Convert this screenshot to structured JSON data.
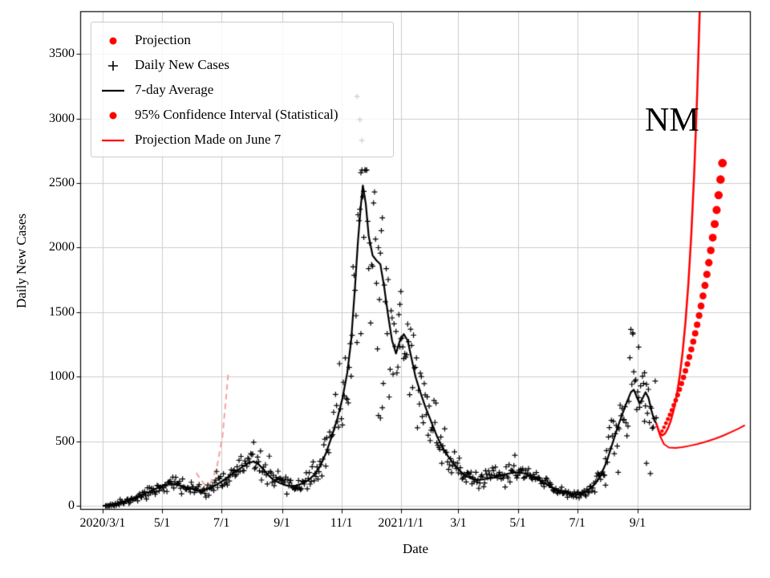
{
  "figure": {
    "annotation": "NM",
    "background": "#ffffff"
  },
  "axes": {
    "xlabel": "Date",
    "ylabel": "Daily New Cases",
    "epoch": "2020-03-01",
    "xlim_days": [
      -23,
      665
    ],
    "ylim": [
      -30,
      3830
    ],
    "grid_color": "#cdcdcd",
    "spine_color": "#000000",
    "xticks": [
      {
        "label": "2020/3/1",
        "date": "2020-03-01"
      },
      {
        "label": "5/1",
        "date": "2020-05-01"
      },
      {
        "label": "7/1",
        "date": "2020-07-01"
      },
      {
        "label": "9/1",
        "date": "2020-09-01"
      },
      {
        "label": "11/1",
        "date": "2020-11-01"
      },
      {
        "label": "2021/1/1",
        "date": "2021-01-01"
      },
      {
        "label": "3/1",
        "date": "2021-03-01"
      },
      {
        "label": "5/1",
        "date": "2021-05-01"
      },
      {
        "label": "7/1",
        "date": "2021-07-01"
      },
      {
        "label": "9/1",
        "date": "2021-09-01"
      }
    ],
    "ytick_values": [
      0,
      500,
      1000,
      1500,
      2000,
      2500,
      3000,
      3500
    ]
  },
  "legend": {
    "items": [
      {
        "label": "Projection",
        "marker": "dot",
        "color": "#ff0000"
      },
      {
        "label": "Daily New Cases",
        "marker": "plus",
        "color": "#000000"
      },
      {
        "label": "7-day Average",
        "marker": "line",
        "color": "#000000"
      },
      {
        "label": "95% Confidence Interval (Statistical)",
        "marker": "dot",
        "color": "#ff0000"
      },
      {
        "label": "Projection Made on June 7",
        "marker": "line",
        "color": "#ff0000"
      }
    ]
  },
  "chart_data": {
    "type": "line",
    "title": "",
    "xlabel": "Date",
    "ylabel": "Daily New Cases",
    "xlim": [
      "2020-02-07",
      "2021-12-26"
    ],
    "ylim": [
      0,
      3800
    ],
    "grid": true,
    "legend_position": "upper left",
    "annotation": "NM",
    "series": [
      {
        "name": "Old projection segment A (faded)",
        "kind": "line",
        "color": "#f4a2a2",
        "width": 2,
        "dash": [
          7,
          5
        ],
        "points": [
          [
            "2020-06-05",
            255
          ],
          [
            "2020-06-12",
            180
          ],
          [
            "2020-06-18",
            130
          ]
        ]
      },
      {
        "name": "Old projection segment B (faded)",
        "kind": "line",
        "color": "#f4a2a2",
        "width": 2,
        "dash": [
          7,
          5
        ],
        "points": [
          [
            "2020-06-12",
            118
          ],
          [
            "2020-06-19",
            165
          ],
          [
            "2020-06-26",
            290
          ],
          [
            "2020-07-02",
            540
          ],
          [
            "2020-07-08",
            1030
          ]
        ]
      },
      {
        "name": "Daily New Cases",
        "kind": "scatter-plus",
        "color": "#000000",
        "lw": 1.2,
        "arm": 3.4,
        "generate": {
          "from": "7-day Average",
          "start": "2020-03-04",
          "end": "2021-09-20",
          "noise_frac": 0.16,
          "min_sigma": 10,
          "seed": 11,
          "spike_every": 9,
          "spike_mult": 1.9,
          "clamp_max": 2600
        },
        "points": [
          [
            "2020-11-17",
            3170
          ],
          [
            "2020-11-20",
            2990
          ],
          [
            "2020-11-22",
            2830
          ],
          [
            "2020-11-21",
            2580
          ],
          [
            "2020-11-24",
            2080
          ],
          [
            "2020-12-09",
            700
          ],
          [
            "2020-12-11",
            680
          ],
          [
            "2020-12-13",
            760
          ],
          [
            "2020-12-31",
            1560
          ],
          [
            "2021-01-01",
            1660
          ],
          [
            "2021-08-27",
            1330
          ],
          [
            "2021-09-02",
            1230
          ],
          [
            "2021-09-08",
            1030
          ],
          [
            "2021-07-30",
            160
          ],
          [
            "2021-08-12",
            260
          ],
          [
            "2021-09-10",
            330
          ],
          [
            "2021-09-14",
            250
          ]
        ]
      },
      {
        "name": "7-day Average",
        "kind": "line",
        "color": "#000000",
        "width": 2.2,
        "points": [
          [
            "2020-03-01",
            0
          ],
          [
            "2020-03-07",
            4
          ],
          [
            "2020-03-13",
            10
          ],
          [
            "2020-03-19",
            20
          ],
          [
            "2020-03-25",
            34
          ],
          [
            "2020-03-31",
            50
          ],
          [
            "2020-04-06",
            70
          ],
          [
            "2020-04-12",
            90
          ],
          [
            "2020-04-18",
            110
          ],
          [
            "2020-04-24",
            132
          ],
          [
            "2020-04-30",
            150
          ],
          [
            "2020-05-06",
            166
          ],
          [
            "2020-05-12",
            172
          ],
          [
            "2020-05-18",
            162
          ],
          [
            "2020-05-24",
            148
          ],
          [
            "2020-05-30",
            135
          ],
          [
            "2020-06-05",
            124
          ],
          [
            "2020-06-11",
            118
          ],
          [
            "2020-06-17",
            130
          ],
          [
            "2020-06-23",
            152
          ],
          [
            "2020-06-29",
            178
          ],
          [
            "2020-07-05",
            208
          ],
          [
            "2020-07-11",
            242
          ],
          [
            "2020-07-17",
            274
          ],
          [
            "2020-07-23",
            305
          ],
          [
            "2020-07-29",
            332
          ],
          [
            "2020-08-03",
            345
          ],
          [
            "2020-08-08",
            322
          ],
          [
            "2020-08-13",
            282
          ],
          [
            "2020-08-18",
            238
          ],
          [
            "2020-08-23",
            204
          ],
          [
            "2020-08-29",
            180
          ],
          [
            "2020-09-04",
            162
          ],
          [
            "2020-09-10",
            152
          ],
          [
            "2020-09-16",
            158
          ],
          [
            "2020-09-22",
            174
          ],
          [
            "2020-09-28",
            198
          ],
          [
            "2020-10-04",
            240
          ],
          [
            "2020-10-10",
            305
          ],
          [
            "2020-10-16",
            405
          ],
          [
            "2020-10-22",
            535
          ],
          [
            "2020-10-28",
            680
          ],
          [
            "2020-11-02",
            830
          ],
          [
            "2020-11-07",
            1030
          ],
          [
            "2020-11-11",
            1280
          ],
          [
            "2020-11-15",
            1700
          ],
          [
            "2020-11-18",
            2050
          ],
          [
            "2020-11-21",
            2330
          ],
          [
            "2020-11-23",
            2480
          ],
          [
            "2020-11-26",
            2340
          ],
          [
            "2020-11-29",
            2090
          ],
          [
            "2020-12-03",
            1940
          ],
          [
            "2020-12-07",
            1900
          ],
          [
            "2020-12-11",
            1870
          ],
          [
            "2020-12-15",
            1690
          ],
          [
            "2020-12-19",
            1470
          ],
          [
            "2020-12-23",
            1280
          ],
          [
            "2020-12-27",
            1180
          ],
          [
            "2020-12-31",
            1280
          ],
          [
            "2021-01-04",
            1330
          ],
          [
            "2021-01-08",
            1280
          ],
          [
            "2021-01-12",
            1140
          ],
          [
            "2021-01-16",
            1000
          ],
          [
            "2021-01-21",
            880
          ],
          [
            "2021-01-26",
            770
          ],
          [
            "2021-02-01",
            655
          ],
          [
            "2021-02-07",
            540
          ],
          [
            "2021-02-13",
            448
          ],
          [
            "2021-02-19",
            378
          ],
          [
            "2021-02-25",
            318
          ],
          [
            "2021-03-03",
            268
          ],
          [
            "2021-03-09",
            232
          ],
          [
            "2021-03-15",
            210
          ],
          [
            "2021-03-21",
            202
          ],
          [
            "2021-03-27",
            206
          ],
          [
            "2021-04-02",
            214
          ],
          [
            "2021-04-08",
            224
          ],
          [
            "2021-04-14",
            236
          ],
          [
            "2021-04-20",
            248
          ],
          [
            "2021-04-26",
            257
          ],
          [
            "2021-05-02",
            260
          ],
          [
            "2021-05-08",
            251
          ],
          [
            "2021-05-14",
            234
          ],
          [
            "2021-05-20",
            211
          ],
          [
            "2021-05-26",
            186
          ],
          [
            "2021-06-01",
            160
          ],
          [
            "2021-06-07",
            136
          ],
          [
            "2021-06-13",
            116
          ],
          [
            "2021-06-19",
            103
          ],
          [
            "2021-06-25",
            95
          ],
          [
            "2021-07-01",
            90
          ],
          [
            "2021-07-07",
            101
          ],
          [
            "2021-07-13",
            126
          ],
          [
            "2021-07-19",
            168
          ],
          [
            "2021-07-25",
            235
          ],
          [
            "2021-07-31",
            340
          ],
          [
            "2021-08-06",
            480
          ],
          [
            "2021-08-11",
            600
          ],
          [
            "2021-08-16",
            705
          ],
          [
            "2021-08-21",
            805
          ],
          [
            "2021-08-25",
            880
          ],
          [
            "2021-08-28",
            900
          ],
          [
            "2021-08-31",
            845
          ],
          [
            "2021-09-03",
            792
          ],
          [
            "2021-09-06",
            832
          ],
          [
            "2021-09-09",
            880
          ],
          [
            "2021-09-12",
            838
          ],
          [
            "2021-09-15",
            742
          ],
          [
            "2021-09-18",
            662
          ],
          [
            "2021-09-20",
            640
          ]
        ]
      },
      {
        "name": "95% Confidence Interval lower bound",
        "kind": "line",
        "color": "#ff0000",
        "width": 2,
        "points": [
          [
            "2021-09-20",
            640
          ],
          [
            "2021-09-24",
            540
          ],
          [
            "2021-09-28",
            478
          ],
          [
            "2021-10-03",
            452
          ],
          [
            "2021-10-10",
            448
          ],
          [
            "2021-10-17",
            455
          ],
          [
            "2021-10-24",
            465
          ],
          [
            "2021-11-01",
            478
          ],
          [
            "2021-11-10",
            497
          ],
          [
            "2021-11-20",
            522
          ],
          [
            "2021-11-28",
            545
          ],
          [
            "2021-12-06",
            572
          ],
          [
            "2021-12-14",
            600
          ],
          [
            "2021-12-20",
            625
          ]
        ]
      },
      {
        "name": "Projection Made on June 7",
        "kind": "line",
        "color": "#ff0000",
        "width": 2.5,
        "points": [
          [
            "2021-09-20",
            640
          ],
          [
            "2021-09-23",
            572
          ],
          [
            "2021-09-26",
            546
          ],
          [
            "2021-09-29",
            560
          ],
          [
            "2021-10-02",
            600
          ],
          [
            "2021-10-05",
            660
          ],
          [
            "2021-10-08",
            745
          ],
          [
            "2021-10-11",
            855
          ],
          [
            "2021-10-14",
            1000
          ],
          [
            "2021-10-17",
            1185
          ],
          [
            "2021-10-20",
            1420
          ],
          [
            "2021-10-23",
            1720
          ],
          [
            "2021-10-26",
            2100
          ],
          [
            "2021-10-29",
            2580
          ],
          [
            "2021-11-01",
            3180
          ],
          [
            "2021-11-04",
            3920
          ],
          [
            "2021-11-06",
            4500
          ]
        ]
      },
      {
        "name": "Projection",
        "kind": "scatter-dot",
        "color": "#ff0000",
        "r0": 2.2,
        "r1": 5.4,
        "points": [
          [
            "2021-09-26",
            580
          ],
          [
            "2021-09-28",
            609
          ],
          [
            "2021-09-30",
            640
          ],
          [
            "2021-10-02",
            672
          ],
          [
            "2021-10-04",
            706
          ],
          [
            "2021-10-06",
            741
          ],
          [
            "2021-10-08",
            779
          ],
          [
            "2021-10-10",
            818
          ],
          [
            "2021-10-12",
            859
          ],
          [
            "2021-10-14",
            902
          ],
          [
            "2021-10-16",
            948
          ],
          [
            "2021-10-18",
            995
          ],
          [
            "2021-10-20",
            1045
          ],
          [
            "2021-10-22",
            1098
          ],
          [
            "2021-10-24",
            1153
          ],
          [
            "2021-10-26",
            1211
          ],
          [
            "2021-10-28",
            1272
          ],
          [
            "2021-10-30",
            1336
          ],
          [
            "2021-11-01",
            1403
          ],
          [
            "2021-11-03",
            1474
          ],
          [
            "2021-11-05",
            1548
          ],
          [
            "2021-11-07",
            1626
          ],
          [
            "2021-11-09",
            1707
          ],
          [
            "2021-11-11",
            1793
          ],
          [
            "2021-11-13",
            1883
          ],
          [
            "2021-11-15",
            1978
          ],
          [
            "2021-11-17",
            2077
          ],
          [
            "2021-11-19",
            2182
          ],
          [
            "2021-11-21",
            2291
          ],
          [
            "2021-11-23",
            2406
          ],
          [
            "2021-11-25",
            2527
          ],
          [
            "2021-11-27",
            2654
          ]
        ]
      }
    ]
  }
}
